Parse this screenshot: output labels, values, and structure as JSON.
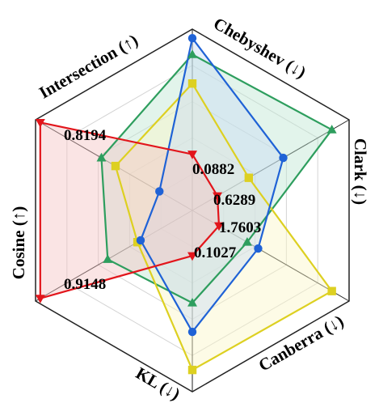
{
  "chart_data": {
    "type": "radar",
    "axes": [
      {
        "label": "Chebyshev (↓)"
      },
      {
        "label": "Clark (↓)"
      },
      {
        "label": "Canberra (↓)"
      },
      {
        "label": "KL (↓)"
      },
      {
        "label": "Cosine (↑)"
      },
      {
        "label": "Intersection (↑)"
      }
    ],
    "grid_levels": 5,
    "legend": "none",
    "series": [
      {
        "color": "#2e9e5e",
        "fill": "#bfe6d2",
        "marker": "triangle-up",
        "values": [
          0.86,
          0.89,
          0.35,
          0.51,
          0.54,
          0.58
        ]
      },
      {
        "color": "#ddd021",
        "fill": "#fbf6c8",
        "marker": "square",
        "values": [
          0.7,
          0.36,
          0.89,
          0.88,
          0.35,
          0.49
        ]
      },
      {
        "color": "#1f62d6",
        "fill": "#c9dcf5",
        "marker": "circle",
        "values": [
          0.95,
          0.58,
          0.42,
          0.67,
          0.33,
          0.21
        ]
      },
      {
        "color": "#e2151b",
        "fill": "#f5c4c4",
        "marker": "triangle-down",
        "values": [
          0.31,
          0.16,
          0.17,
          0.25,
          0.97,
          0.97
        ]
      }
    ],
    "value_labels": [
      "0.0882",
      "0.6289",
      "1.7603",
      "0.1027",
      "0.9148",
      "0.8194"
    ]
  }
}
